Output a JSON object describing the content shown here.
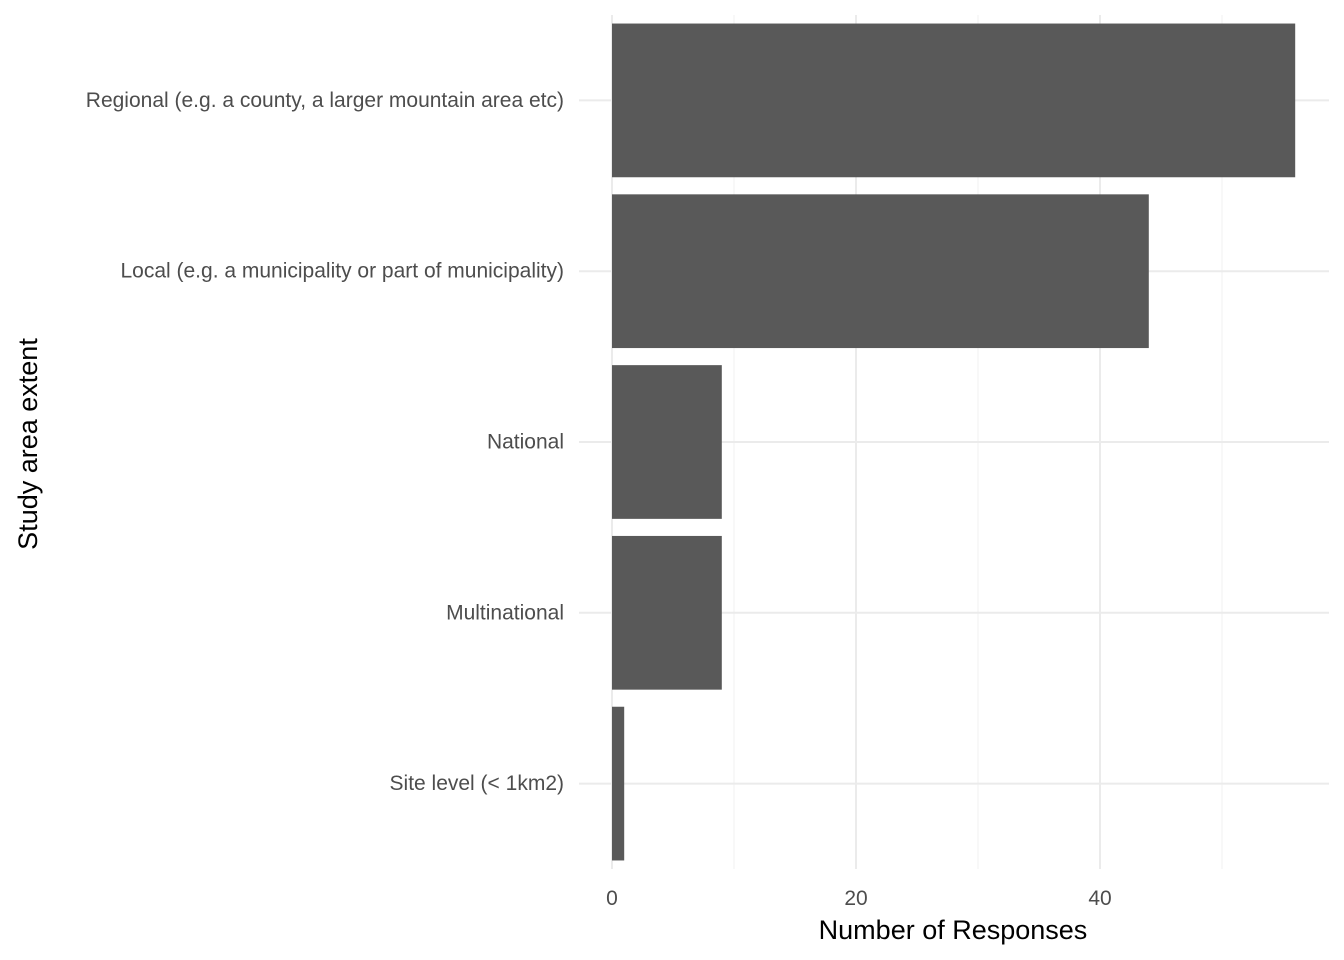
{
  "chart_data": {
    "type": "bar",
    "orientation": "horizontal",
    "categories": [
      "Regional (e.g. a county, a larger mountain area etc)",
      "Local (e.g. a municipality or part of municipality)",
      "National",
      "Multinational",
      "Site level (< 1km2)"
    ],
    "values": [
      56,
      44,
      9,
      9,
      1
    ],
    "xlabel": "Number of Responses",
    "ylabel": "Study area extent",
    "xlim": [
      0,
      59
    ],
    "x_ticks": [
      0,
      20,
      40
    ],
    "grid": true,
    "legend": "none",
    "colors": {
      "bar": "#595959",
      "grid_major": "#ebebeb",
      "grid_minor": "#f2f2f2",
      "tick_text": "#4d4d4d",
      "title_text": "#000000"
    }
  }
}
